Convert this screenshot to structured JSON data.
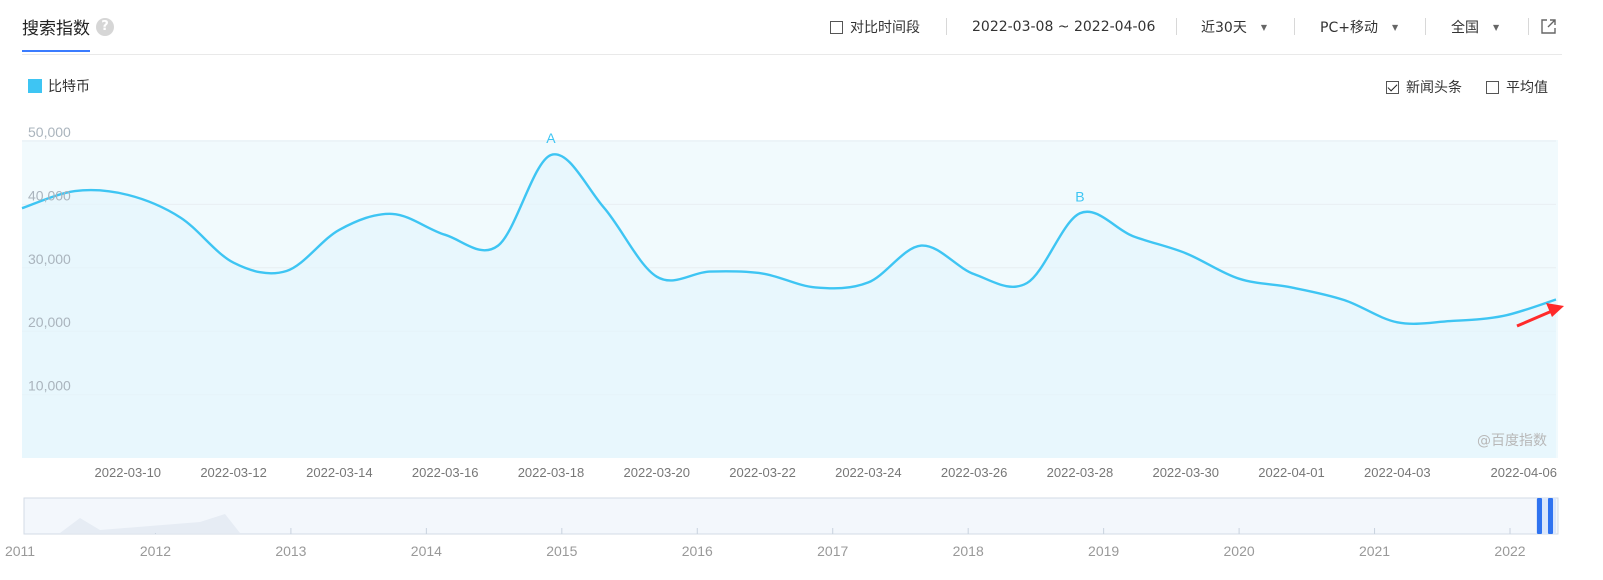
{
  "header": {
    "title": "搜索指数",
    "help_glyph": "?",
    "compare_label": "对比时间段",
    "date_range": "2022-03-08 ~ 2022-04-06",
    "period_select": "近30天",
    "device_select": "PC+移动",
    "region_select": "全国",
    "export_icon": "external-link-icon"
  },
  "legend": {
    "series_label": "比特币",
    "color": "#3ec5f3"
  },
  "toggles": {
    "news_label": "新闻头条",
    "news_checked": true,
    "avg_label": "平均值",
    "avg_checked": false
  },
  "watermark": "@百度指数",
  "chart_data": {
    "type": "line",
    "title": "",
    "xlabel": "",
    "ylabel": "",
    "ylim": [
      0,
      50000
    ],
    "y_ticks": [
      "10,000",
      "20,000",
      "30,000",
      "40,000",
      "50,000"
    ],
    "x_tick_labels": [
      "2022-03-10",
      "2022-03-12",
      "2022-03-14",
      "2022-03-16",
      "2022-03-18",
      "2022-03-20",
      "2022-03-22",
      "2022-03-24",
      "2022-03-26",
      "2022-03-28",
      "2022-03-30",
      "2022-04-01",
      "2022-04-03",
      "2022-04-06"
    ],
    "grid": true,
    "series": [
      {
        "name": "比特币",
        "color": "#3ec5f3",
        "x": [
          "2022-03-08",
          "2022-03-09",
          "2022-03-10",
          "2022-03-11",
          "2022-03-12",
          "2022-03-13",
          "2022-03-14",
          "2022-03-15",
          "2022-03-16",
          "2022-03-17",
          "2022-03-18",
          "2022-03-19",
          "2022-03-20",
          "2022-03-21",
          "2022-03-22",
          "2022-03-23",
          "2022-03-24",
          "2022-03-25",
          "2022-03-26",
          "2022-03-27",
          "2022-03-28",
          "2022-03-29",
          "2022-03-30",
          "2022-03-31",
          "2022-04-01",
          "2022-04-02",
          "2022-04-03",
          "2022-04-04",
          "2022-04-05",
          "2022-04-06"
        ],
        "values": [
          39400,
          42100,
          41500,
          37900,
          30800,
          29500,
          36000,
          38500,
          35200,
          33500,
          47800,
          39500,
          28600,
          29400,
          29100,
          26900,
          27700,
          33500,
          29000,
          27600,
          38600,
          35000,
          32300,
          28300,
          26900,
          24900,
          21400,
          21600,
          22400,
          25000
        ]
      }
    ],
    "annotations": [
      {
        "label": "A",
        "x": "2022-03-18"
      },
      {
        "label": "B",
        "x": "2022-03-28"
      }
    ],
    "navigator": {
      "year_labels": [
        "2011",
        "2012",
        "2013",
        "2014",
        "2015",
        "2016",
        "2017",
        "2018",
        "2019",
        "2020",
        "2021",
        "2022"
      ]
    }
  }
}
